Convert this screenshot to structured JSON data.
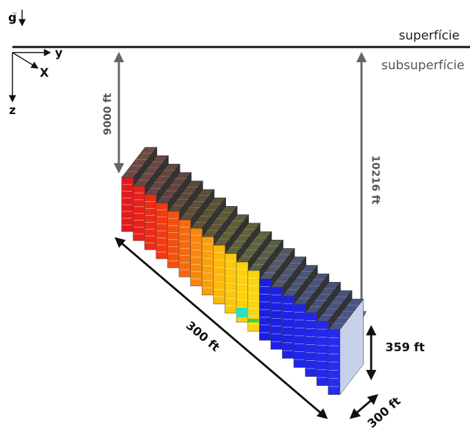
{
  "gravity": "g",
  "surface": "superfície",
  "subsurface": "subsuperfície",
  "axes": {
    "y": "y",
    "x": "X",
    "z": "z"
  },
  "dimensions": {
    "depth_top": "9000 ft",
    "depth_bottom": "10216 ft",
    "length": "300 ft",
    "height": "359 ft",
    "width": "300 ft"
  }
}
